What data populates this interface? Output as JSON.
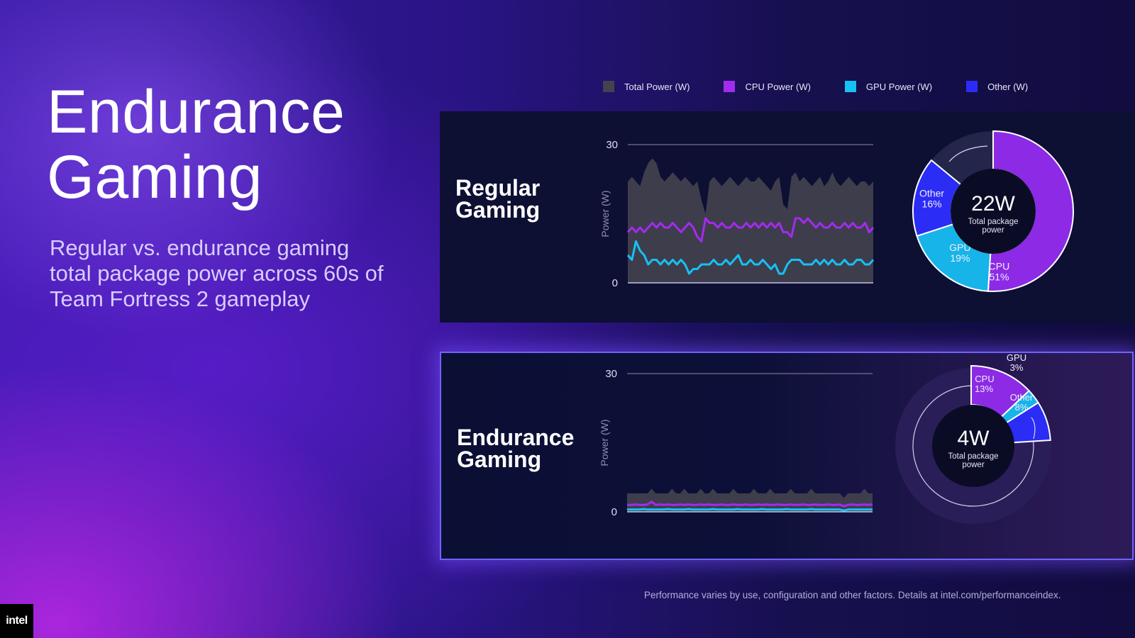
{
  "title": {
    "line1": "Endurance",
    "line2": "Gaming"
  },
  "subtitle": "Regular vs. endurance gaming total package power across 60s of Team Fortress 2 gameplay",
  "legend": [
    {
      "label": "Total Power (W)",
      "color": "#44424f"
    },
    {
      "label": "CPU Power (W)",
      "color": "#a32bf0"
    },
    {
      "label": "GPU Power (W)",
      "color": "#16c1f3"
    },
    {
      "label": "Other  (W)",
      "color": "#2b2cf6"
    }
  ],
  "footer": "Performance varies by use, configuration and other factors.  Details at intel.com/performanceindex.",
  "logo": "intel",
  "chart_data": [
    {
      "type": "area",
      "panel_title_line1": "Regular",
      "panel_title_line2": "Gaming",
      "ylabel": "Power (W)",
      "ylim": [
        0,
        30
      ],
      "y_ticks": [
        "0",
        "30"
      ],
      "x_range": [
        0,
        60
      ],
      "series": [
        {
          "name": "Total Power (W)",
          "color": "#44424f",
          "kind": "area",
          "values": [
            22,
            23,
            22,
            21,
            24,
            26,
            27,
            26,
            23,
            22,
            23,
            24,
            23,
            22,
            23,
            22,
            21,
            22,
            18,
            15,
            22,
            23,
            22,
            21,
            22,
            23,
            22,
            21,
            22,
            23,
            22,
            22,
            23,
            22,
            21,
            20,
            22,
            23,
            17,
            16,
            23,
            24,
            22,
            23,
            22,
            21,
            22,
            23,
            21,
            22,
            24,
            22,
            21,
            22,
            23,
            22,
            21,
            22,
            22,
            21,
            22
          ]
        },
        {
          "name": "CPU Power (W)",
          "color": "#a32bf0",
          "kind": "line",
          "values": [
            11,
            12,
            11,
            12,
            11,
            12,
            13,
            12,
            13,
            12,
            12,
            13,
            12,
            11,
            12,
            13,
            12,
            10,
            9,
            14,
            13,
            13,
            12,
            13,
            12,
            12,
            13,
            12,
            12,
            13,
            12,
            13,
            12,
            13,
            12,
            13,
            12,
            13,
            11,
            11,
            10,
            14,
            14,
            13,
            14,
            13,
            12,
            13,
            12,
            12,
            13,
            12,
            12,
            13,
            12,
            13,
            12,
            12,
            13,
            11,
            12
          ]
        },
        {
          "name": "GPU Power (W)",
          "color": "#16c1f3",
          "kind": "line",
          "values": [
            6,
            5,
            9,
            7,
            6,
            4,
            5,
            5,
            4,
            5,
            4,
            5,
            4,
            5,
            4,
            2,
            3,
            3,
            4,
            4,
            4,
            5,
            4,
            4,
            5,
            4,
            5,
            6,
            4,
            4,
            5,
            4,
            4,
            5,
            4,
            3,
            4,
            2,
            2,
            4,
            5,
            5,
            5,
            4,
            4,
            4,
            5,
            4,
            5,
            4,
            5,
            4,
            4,
            5,
            4,
            4,
            5,
            5,
            4,
            4,
            5
          ]
        }
      ],
      "donut": {
        "center_value": "22W",
        "center_label": "Total package power",
        "slices": [
          {
            "name": "CPU",
            "pct": 51,
            "label": "CPU",
            "pct_label": "51%",
            "color": "#8c2ae6"
          },
          {
            "name": "GPU",
            "pct": 19,
            "label": "GPU",
            "pct_label": "19%",
            "color": "#16b4e8"
          },
          {
            "name": "Other",
            "pct": 16,
            "label": "Other",
            "pct_label": "16%",
            "color": "#2b2cf6"
          }
        ]
      }
    },
    {
      "type": "area",
      "panel_title_line1": "Endurance",
      "panel_title_line2": "Gaming",
      "ylabel": "Power (W)",
      "ylim": [
        0,
        30
      ],
      "y_ticks": [
        "0",
        "30"
      ],
      "x_range": [
        0,
        60
      ],
      "series": [
        {
          "name": "Total Power (W)",
          "color": "#44424f",
          "kind": "area",
          "values": [
            4,
            4,
            4,
            4,
            4,
            4,
            5,
            4,
            4,
            4,
            4,
            5,
            4,
            4,
            5,
            4,
            4,
            4,
            5,
            4,
            4,
            5,
            4,
            4,
            4,
            4,
            5,
            4,
            4,
            4,
            4,
            5,
            4,
            4,
            4,
            5,
            4,
            4,
            4,
            4,
            5,
            4,
            4,
            4,
            4,
            5,
            4,
            4,
            4,
            4,
            4,
            4,
            4,
            3,
            4,
            4,
            4,
            4,
            5,
            4,
            4
          ]
        },
        {
          "name": "CPU Power (W)",
          "color": "#a32bf0",
          "kind": "line",
          "values": [
            1.5,
            1.5,
            1.6,
            1.5,
            1.5,
            1.6,
            2.2,
            1.5,
            1.6,
            1.5,
            1.6,
            1.5,
            1.5,
            1.6,
            1.5,
            1.6,
            1.5,
            1.5,
            1.6,
            1.5,
            1.6,
            1.5,
            1.5,
            1.6,
            1.5,
            1.5,
            1.6,
            1.5,
            1.5,
            1.6,
            1.5,
            1.5,
            1.6,
            1.5,
            1.6,
            1.5,
            1.5,
            1.6,
            1.5,
            1.5,
            1.6,
            1.5,
            1.5,
            1.6,
            1.5,
            1.5,
            1.6,
            1.5,
            1.5,
            1.6,
            1.5,
            1.5,
            1.6,
            1.2,
            1.5,
            1.6,
            1.5,
            1.5,
            1.6,
            1.5,
            1.6
          ]
        },
        {
          "name": "GPU Power (W)",
          "color": "#16c1f3",
          "kind": "line",
          "values": [
            0.5,
            0.5,
            0.5,
            0.5,
            0.6,
            0.5,
            0.5,
            0.5,
            0.5,
            0.5,
            0.6,
            0.5,
            0.5,
            0.5,
            0.5,
            0.6,
            0.5,
            0.5,
            0.5,
            0.5,
            0.5,
            0.6,
            0.5,
            0.5,
            0.5,
            0.5,
            0.5,
            0.6,
            0.5,
            0.5,
            0.5,
            0.5,
            0.5,
            0.6,
            0.5,
            0.5,
            0.5,
            0.5,
            0.5,
            0.6,
            0.5,
            0.5,
            0.5,
            0.5,
            0.5,
            0.6,
            0.5,
            0.5,
            0.5,
            0.5,
            0.5,
            0.5,
            0.5,
            0.3,
            0.5,
            0.5,
            0.5,
            0.5,
            0.5,
            0.5,
            0.5
          ]
        }
      ],
      "donut": {
        "center_value": "4W",
        "center_label": "Total package power",
        "slices": [
          {
            "name": "CPU",
            "pct": 13,
            "label": "CPU",
            "pct_label": "13%",
            "color": "#8c2ae6"
          },
          {
            "name": "GPU",
            "pct": 3,
            "label": "GPU",
            "pct_label": "3%",
            "color": "#16b4e8"
          },
          {
            "name": "Other",
            "pct": 8,
            "label": "Other",
            "pct_label": "8%",
            "color": "#2b2cf6"
          }
        ]
      }
    }
  ]
}
